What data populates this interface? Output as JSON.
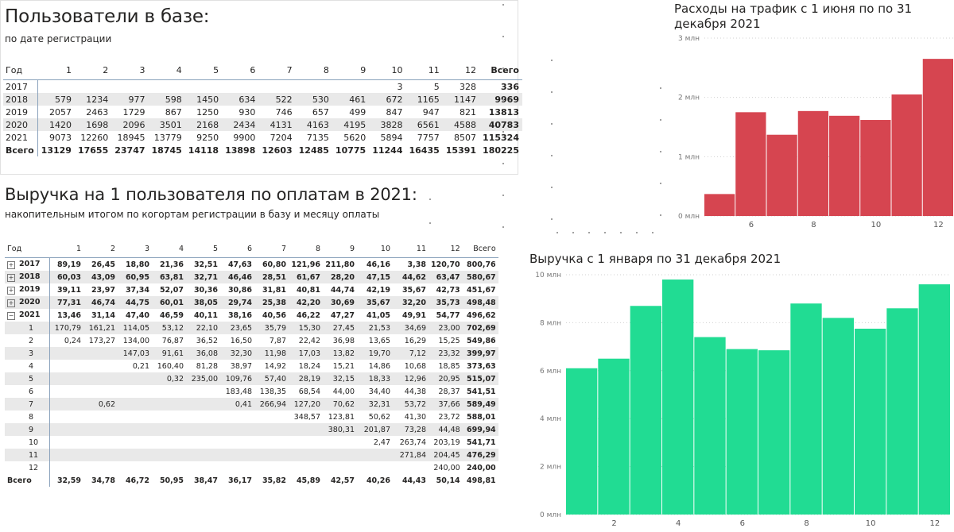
{
  "table1": {
    "title": "Пользователи в базе:",
    "subtitle": "по дате регистрации",
    "columns": [
      "Год",
      "1",
      "2",
      "3",
      "4",
      "5",
      "6",
      "7",
      "8",
      "9",
      "10",
      "11",
      "12",
      "Всего"
    ],
    "rows": [
      [
        "2017",
        "",
        "",
        "",
        "",
        "",
        "",
        "",
        "",
        "",
        "3",
        "5",
        "328",
        "336"
      ],
      [
        "2018",
        "579",
        "1234",
        "977",
        "598",
        "1450",
        "634",
        "522",
        "530",
        "461",
        "672",
        "1165",
        "1147",
        "9969"
      ],
      [
        "2019",
        "2057",
        "2463",
        "1729",
        "867",
        "1250",
        "930",
        "746",
        "657",
        "499",
        "847",
        "947",
        "821",
        "13813"
      ],
      [
        "2020",
        "1420",
        "1698",
        "2096",
        "3501",
        "2168",
        "2434",
        "4131",
        "4163",
        "4195",
        "3828",
        "6561",
        "4588",
        "40783"
      ],
      [
        "2021",
        "9073",
        "12260",
        "18945",
        "13779",
        "9250",
        "9900",
        "7204",
        "7135",
        "5620",
        "5894",
        "7757",
        "8507",
        "115324"
      ]
    ],
    "total": [
      "Всего",
      "13129",
      "17655",
      "23747",
      "18745",
      "14118",
      "13898",
      "12603",
      "12485",
      "10775",
      "11244",
      "16435",
      "15391",
      "180225"
    ]
  },
  "table2": {
    "title": "Выручка на 1 пользователя по оплатам в 2021:",
    "subtitle": "накопительным итогом по когортам регистрации в базу и месяцу оплаты",
    "columns": [
      "Год",
      "1",
      "2",
      "3",
      "4",
      "5",
      "6",
      "7",
      "8",
      "9",
      "10",
      "11",
      "12",
      "Всего"
    ],
    "expand_icon": "+",
    "collapse_icon": "−",
    "groups": [
      [
        "2017",
        "89,19",
        "26,45",
        "18,80",
        "21,36",
        "32,51",
        "47,63",
        "60,80",
        "121,96",
        "211,80",
        "46,16",
        "3,38",
        "120,70",
        "800,76"
      ],
      [
        "2018",
        "60,03",
        "43,09",
        "60,95",
        "63,81",
        "32,71",
        "46,46",
        "28,51",
        "61,67",
        "28,20",
        "47,15",
        "44,62",
        "63,47",
        "580,67"
      ],
      [
        "2019",
        "39,11",
        "23,97",
        "37,34",
        "52,07",
        "30,36",
        "30,86",
        "31,81",
        "40,81",
        "44,74",
        "42,19",
        "35,67",
        "42,73",
        "451,67"
      ],
      [
        "2020",
        "77,31",
        "46,74",
        "44,75",
        "60,01",
        "38,05",
        "29,74",
        "25,38",
        "42,20",
        "30,69",
        "35,67",
        "32,20",
        "35,73",
        "498,48"
      ],
      [
        "2021",
        "13,46",
        "31,14",
        "47,40",
        "46,59",
        "40,11",
        "38,16",
        "40,56",
        "46,22",
        "47,27",
        "41,05",
        "49,91",
        "54,77",
        "496,62"
      ]
    ],
    "months": [
      [
        "1",
        "170,79",
        "161,21",
        "114,05",
        "53,12",
        "22,10",
        "23,65",
        "35,79",
        "15,30",
        "27,45",
        "21,53",
        "34,69",
        "23,00",
        "702,69"
      ],
      [
        "2",
        "0,24",
        "173,27",
        "134,00",
        "76,87",
        "36,52",
        "16,50",
        "7,87",
        "22,42",
        "36,98",
        "13,65",
        "16,29",
        "15,25",
        "549,86"
      ],
      [
        "3",
        "",
        "",
        "147,03",
        "91,61",
        "36,08",
        "32,30",
        "11,98",
        "17,03",
        "13,82",
        "19,70",
        "7,12",
        "23,32",
        "399,97"
      ],
      [
        "4",
        "",
        "",
        "0,21",
        "160,40",
        "81,28",
        "38,97",
        "14,92",
        "18,24",
        "15,21",
        "14,86",
        "10,68",
        "18,85",
        "373,63"
      ],
      [
        "5",
        "",
        "",
        "",
        "0,32",
        "235,00",
        "109,76",
        "57,40",
        "28,19",
        "32,15",
        "18,33",
        "12,96",
        "20,95",
        "515,07"
      ],
      [
        "6",
        "",
        "",
        "",
        "",
        "",
        "183,48",
        "138,35",
        "68,54",
        "44,00",
        "34,40",
        "44,38",
        "28,37",
        "541,51"
      ],
      [
        "7",
        "",
        "0,62",
        "",
        "",
        "",
        "0,41",
        "266,94",
        "127,20",
        "70,62",
        "32,31",
        "53,72",
        "37,66",
        "589,49"
      ],
      [
        "8",
        "",
        "",
        "",
        "",
        "",
        "",
        "",
        "348,57",
        "123,81",
        "50,62",
        "41,30",
        "23,72",
        "588,01"
      ],
      [
        "9",
        "",
        "",
        "",
        "",
        "",
        "",
        "",
        "",
        "380,31",
        "201,87",
        "73,28",
        "44,48",
        "699,94"
      ],
      [
        "10",
        "",
        "",
        "",
        "",
        "",
        "",
        "",
        "",
        "",
        "2,47",
        "263,74",
        "203,19",
        "541,71"
      ],
      [
        "11",
        "",
        "",
        "",
        "",
        "",
        "",
        "",
        "",
        "",
        "",
        "271,84",
        "204,45",
        "476,29"
      ],
      [
        "12",
        "",
        "",
        "",
        "",
        "",
        "",
        "",
        "",
        "",
        "",
        "",
        "240,00",
        "240,00"
      ]
    ],
    "total": [
      "Всего",
      "32,59",
      "34,78",
      "46,72",
      "50,95",
      "38,47",
      "36,17",
      "35,82",
      "45,89",
      "42,57",
      "40,26",
      "44,43",
      "50,14",
      "498,81"
    ]
  },
  "chart_data": [
    {
      "type": "bar",
      "title": "Расходы на трафик с 1 июня по по 31 декабря 2021",
      "color": "#d64550",
      "x": [
        5,
        6,
        7,
        8,
        9,
        10,
        11,
        12
      ],
      "values": [
        0.37,
        1.75,
        1.37,
        1.77,
        1.69,
        1.62,
        2.05,
        2.65
      ],
      "ylim": [
        0,
        3
      ],
      "yticks": [
        0,
        1,
        2,
        3
      ],
      "ytick_labels": [
        "0 млн",
        "1 млн",
        "2 млн",
        "3 млн"
      ],
      "xticks": [
        6,
        8,
        10,
        12
      ],
      "xlabel": "",
      "ylabel": "",
      "grid": true
    },
    {
      "type": "bar",
      "title": "Выручка с 1 января по 31 декабря 2021",
      "color": "#21dc93",
      "x": [
        1,
        2,
        3,
        4,
        5,
        6,
        7,
        8,
        9,
        10,
        11,
        12
      ],
      "values": [
        6.1,
        6.5,
        8.7,
        9.8,
        7.4,
        6.9,
        6.85,
        8.8,
        8.2,
        7.75,
        8.6,
        9.6
      ],
      "ylim": [
        0,
        10
      ],
      "yticks": [
        0,
        2,
        4,
        6,
        8,
        10
      ],
      "ytick_labels": [
        "0 млн",
        "2 млн",
        "4 млн",
        "6 млн",
        "8 млн",
        "10 млн"
      ],
      "xticks": [
        2,
        4,
        6,
        8,
        10,
        12
      ],
      "xlabel": "",
      "ylabel": "",
      "grid": true
    }
  ]
}
